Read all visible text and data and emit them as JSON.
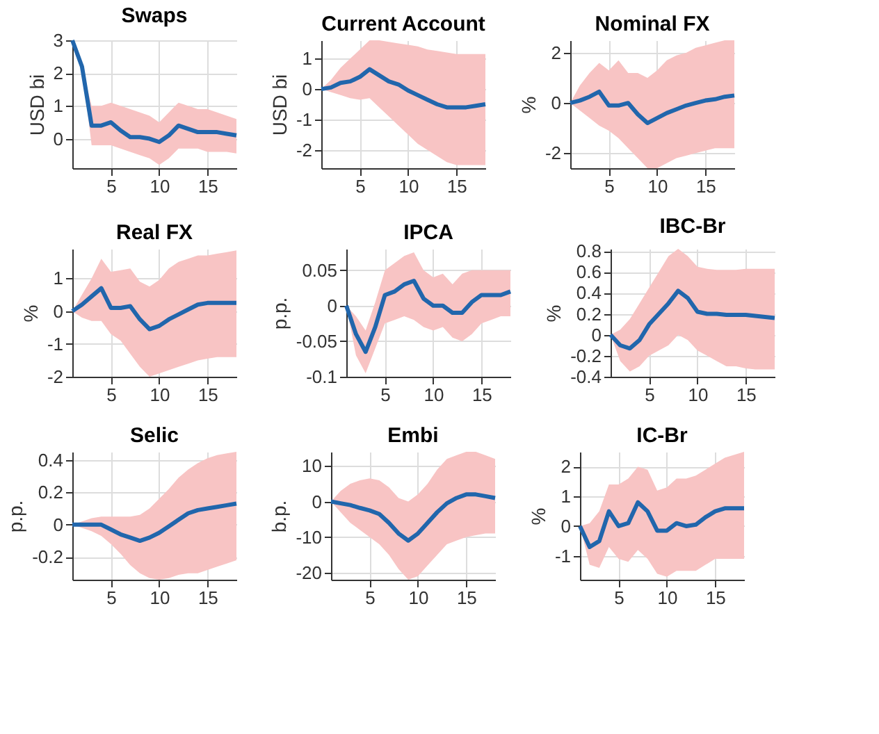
{
  "chart_data": [
    {
      "type": "line",
      "title": "Swaps",
      "ylabel": "USD bi",
      "x": [
        1,
        2,
        3,
        4,
        5,
        6,
        7,
        8,
        9,
        10,
        11,
        12,
        13,
        14,
        15,
        16,
        17,
        18
      ],
      "xlim": [
        1,
        18
      ],
      "xticks": [
        5,
        10,
        15
      ],
      "ylim": [
        -0.9,
        3
      ],
      "yticks": [
        0,
        1,
        2,
        3
      ],
      "grid": true,
      "legend": false,
      "series": [
        {
          "color": "#2166ac",
          "values": [
            3,
            2.2,
            0.4,
            0.4,
            0.5,
            0.25,
            0.05,
            0.05,
            0,
            -0.1,
            0.1,
            0.4,
            0.3,
            0.2,
            0.2,
            0.2,
            0.15,
            0.1
          ],
          "lower": [
            3,
            2.2,
            -0.2,
            -0.2,
            -0.2,
            -0.3,
            -0.4,
            -0.5,
            -0.6,
            -0.8,
            -0.6,
            -0.3,
            -0.3,
            -0.3,
            -0.4,
            -0.4,
            -0.4,
            -0.45
          ],
          "upper": [
            3,
            2.2,
            1.0,
            1.0,
            1.1,
            1.0,
            0.9,
            0.8,
            0.7,
            0.5,
            0.8,
            1.1,
            1.0,
            0.9,
            0.9,
            0.8,
            0.7,
            0.6
          ]
        }
      ]
    },
    {
      "type": "line",
      "title": "Current Account",
      "ylabel": "USD bi",
      "x": [
        1,
        2,
        3,
        4,
        5,
        6,
        7,
        8,
        9,
        10,
        11,
        12,
        13,
        14,
        15,
        16,
        17,
        18
      ],
      "xlim": [
        1,
        18
      ],
      "xticks": [
        5,
        10,
        15
      ],
      "ylim": [
        -2.6,
        1.6
      ],
      "yticks": [
        -2,
        -1,
        0,
        1
      ],
      "grid": true,
      "legend": false,
      "series": [
        {
          "color": "#2166ac",
          "values": [
            0,
            0.05,
            0.2,
            0.25,
            0.4,
            0.65,
            0.45,
            0.25,
            0.15,
            -0.05,
            -0.2,
            -0.35,
            -0.5,
            -0.6,
            -0.6,
            -0.6,
            -0.55,
            -0.5
          ],
          "lower": [
            0,
            -0.1,
            -0.2,
            -0.3,
            -0.35,
            -0.3,
            -0.6,
            -0.9,
            -1.2,
            -1.5,
            -1.8,
            -2.0,
            -2.2,
            -2.4,
            -2.5,
            -2.5,
            -2.5,
            -2.5
          ],
          "upper": [
            0,
            0.3,
            0.7,
            1.0,
            1.3,
            1.6,
            1.6,
            1.55,
            1.5,
            1.45,
            1.4,
            1.3,
            1.25,
            1.2,
            1.15,
            1.15,
            1.15,
            1.15
          ]
        }
      ]
    },
    {
      "type": "line",
      "title": "Nominal FX",
      "ylabel": "%",
      "x": [
        1,
        2,
        3,
        4,
        5,
        6,
        7,
        8,
        9,
        10,
        11,
        12,
        13,
        14,
        15,
        16,
        17,
        18
      ],
      "xlim": [
        1,
        18
      ],
      "xticks": [
        5,
        10,
        15
      ],
      "ylim": [
        -2.6,
        2.5
      ],
      "yticks": [
        -2,
        0,
        2
      ],
      "grid": true,
      "legend": false,
      "series": [
        {
          "color": "#2166ac",
          "values": [
            0,
            0.1,
            0.25,
            0.45,
            -0.1,
            -0.1,
            0,
            -0.45,
            -0.8,
            -0.6,
            -0.4,
            -0.25,
            -0.1,
            0,
            0.1,
            0.15,
            0.25,
            0.3
          ],
          "lower": [
            0,
            -0.3,
            -0.6,
            -0.9,
            -1.1,
            -1.4,
            -1.8,
            -2.2,
            -2.6,
            -2.6,
            -2.4,
            -2.2,
            -2.1,
            -2.0,
            -1.9,
            -1.8,
            -1.8,
            -1.8
          ],
          "upper": [
            0,
            0.7,
            1.2,
            1.6,
            1.3,
            1.7,
            1.2,
            1.2,
            1.0,
            1.3,
            1.7,
            1.9,
            2.0,
            2.2,
            2.3,
            2.4,
            2.5,
            2.5
          ]
        }
      ]
    },
    {
      "type": "line",
      "title": "Real FX",
      "ylabel": "%",
      "x": [
        1,
        2,
        3,
        4,
        5,
        6,
        7,
        8,
        9,
        10,
        11,
        12,
        13,
        14,
        15,
        16,
        17,
        18
      ],
      "xlim": [
        1,
        18
      ],
      "xticks": [
        5,
        10,
        15
      ],
      "ylim": [
        -2,
        1.9
      ],
      "yticks": [
        -2,
        -1,
        0,
        1
      ],
      "grid": true,
      "legend": false,
      "series": [
        {
          "color": "#2166ac",
          "values": [
            0,
            0.2,
            0.45,
            0.7,
            0.1,
            0.1,
            0.15,
            -0.25,
            -0.55,
            -0.45,
            -0.25,
            -0.1,
            0.05,
            0.2,
            0.25,
            0.25,
            0.25,
            0.25
          ],
          "lower": [
            0,
            -0.2,
            -0.3,
            -0.3,
            -0.7,
            -0.9,
            -1.3,
            -1.7,
            -2,
            -1.9,
            -1.8,
            -1.7,
            -1.6,
            -1.5,
            -1.45,
            -1.4,
            -1.4,
            -1.4
          ],
          "upper": [
            0,
            0.5,
            1.0,
            1.6,
            1.2,
            1.25,
            1.3,
            0.9,
            0.75,
            0.95,
            1.3,
            1.5,
            1.6,
            1.7,
            1.7,
            1.75,
            1.8,
            1.85
          ]
        }
      ]
    },
    {
      "type": "line",
      "title": "IPCA",
      "ylabel": "p.p.",
      "x": [
        1,
        2,
        3,
        4,
        5,
        6,
        7,
        8,
        9,
        10,
        11,
        12,
        13,
        14,
        15,
        16,
        17,
        18
      ],
      "xlim": [
        1,
        18
      ],
      "xticks": [
        5,
        10,
        15
      ],
      "ylim": [
        -0.1,
        0.08
      ],
      "yticks": [
        -0.1,
        -0.05,
        0,
        0.05
      ],
      "grid": true,
      "legend": false,
      "series": [
        {
          "color": "#2166ac",
          "values": [
            0,
            -0.04,
            -0.065,
            -0.03,
            0.015,
            0.02,
            0.03,
            0.035,
            0.01,
            0.0,
            0.0,
            -0.01,
            -0.01,
            0.005,
            0.015,
            0.015,
            0.015,
            0.02
          ],
          "lower": [
            0,
            -0.07,
            -0.095,
            -0.06,
            -0.025,
            -0.02,
            -0.015,
            -0.02,
            -0.03,
            -0.035,
            -0.03,
            -0.045,
            -0.05,
            -0.04,
            -0.025,
            -0.02,
            -0.015,
            -0.015
          ],
          "upper": [
            0,
            -0.015,
            -0.035,
            0.005,
            0.05,
            0.06,
            0.07,
            0.075,
            0.05,
            0.04,
            0.045,
            0.03,
            0.045,
            0.05,
            0.05,
            0.05,
            0.05,
            0.05
          ]
        }
      ]
    },
    {
      "type": "line",
      "title": "IBC-Br",
      "ylabel": "%",
      "x": [
        1,
        2,
        3,
        4,
        5,
        6,
        7,
        8,
        9,
        10,
        11,
        12,
        13,
        14,
        15,
        16,
        17,
        18
      ],
      "xlim": [
        1,
        18
      ],
      "xticks": [
        5,
        10,
        15
      ],
      "ylim": [
        -0.4,
        0.82
      ],
      "yticks": [
        -0.4,
        -0.2,
        0,
        0.2,
        0.4,
        0.6,
        0.8
      ],
      "grid": true,
      "legend": false,
      "series": [
        {
          "color": "#2166ac",
          "values": [
            0,
            -0.1,
            -0.13,
            -0.05,
            0.1,
            0.2,
            0.3,
            0.42,
            0.35,
            0.22,
            0.2,
            0.2,
            0.19,
            0.19,
            0.19,
            0.18,
            0.17,
            0.16
          ],
          "lower": [
            0,
            -0.25,
            -0.35,
            -0.3,
            -0.2,
            -0.15,
            -0.1,
            0.0,
            -0.05,
            -0.15,
            -0.2,
            -0.25,
            -0.3,
            -0.3,
            -0.32,
            -0.33,
            -0.33,
            -0.33
          ],
          "upper": [
            0,
            0.05,
            0.15,
            0.3,
            0.45,
            0.6,
            0.75,
            0.82,
            0.75,
            0.65,
            0.63,
            0.62,
            0.62,
            0.62,
            0.63,
            0.63,
            0.63,
            0.63
          ]
        }
      ]
    },
    {
      "type": "line",
      "title": "Selic",
      "ylabel": "p.p.",
      "x": [
        1,
        2,
        3,
        4,
        5,
        6,
        7,
        8,
        9,
        10,
        11,
        12,
        13,
        14,
        15,
        16,
        17,
        18
      ],
      "xlim": [
        1,
        18
      ],
      "xticks": [
        5,
        10,
        15
      ],
      "ylim": [
        -0.34,
        0.45
      ],
      "yticks": [
        -0.2,
        0,
        0.2,
        0.4
      ],
      "grid": true,
      "legend": false,
      "series": [
        {
          "color": "#2166ac",
          "values": [
            0,
            0,
            0,
            0,
            -0.03,
            -0.06,
            -0.08,
            -0.1,
            -0.08,
            -0.05,
            -0.01,
            0.03,
            0.07,
            0.09,
            0.1,
            0.11,
            0.12,
            0.13
          ],
          "lower": [
            0,
            -0.02,
            -0.04,
            -0.07,
            -0.12,
            -0.18,
            -0.25,
            -0.3,
            -0.33,
            -0.34,
            -0.33,
            -0.31,
            -0.3,
            -0.3,
            -0.28,
            -0.26,
            -0.24,
            -0.22
          ],
          "upper": [
            0,
            0.02,
            0.04,
            0.05,
            0.05,
            0.05,
            0.05,
            0.06,
            0.1,
            0.16,
            0.22,
            0.29,
            0.34,
            0.38,
            0.41,
            0.43,
            0.44,
            0.45
          ]
        }
      ]
    },
    {
      "type": "line",
      "title": "Embi",
      "ylabel": "b.p.",
      "x": [
        1,
        2,
        3,
        4,
        5,
        6,
        7,
        8,
        9,
        10,
        11,
        12,
        13,
        14,
        15,
        16,
        17,
        18
      ],
      "xlim": [
        1,
        18
      ],
      "xticks": [
        5,
        10,
        15
      ],
      "ylim": [
        -22,
        14
      ],
      "yticks": [
        -20,
        -10,
        0,
        10
      ],
      "grid": true,
      "legend": false,
      "series": [
        {
          "color": "#2166ac",
          "values": [
            0,
            -0.5,
            -1,
            -1.8,
            -2.5,
            -3.5,
            -6,
            -9,
            -11,
            -9,
            -6,
            -3,
            -0.5,
            1,
            2,
            2,
            1.5,
            1
          ],
          "lower": [
            0,
            -3,
            -6,
            -8,
            -10,
            -12,
            -15,
            -19,
            -22,
            -21,
            -18,
            -15,
            -12,
            -11,
            -10,
            -9.5,
            -9,
            -9
          ],
          "upper": [
            0,
            3,
            5,
            6,
            6.5,
            6,
            4,
            1,
            0,
            2,
            5,
            9,
            12,
            13,
            14,
            14,
            13,
            12
          ]
        }
      ]
    },
    {
      "type": "line",
      "title": "IC-Br",
      "ylabel": "%",
      "x": [
        1,
        2,
        3,
        4,
        5,
        6,
        7,
        8,
        9,
        10,
        11,
        12,
        13,
        14,
        15,
        16,
        17,
        18
      ],
      "xlim": [
        1,
        18
      ],
      "xticks": [
        5,
        10,
        15
      ],
      "ylim": [
        -1.8,
        2.5
      ],
      "yticks": [
        -1,
        0,
        1,
        2
      ],
      "grid": true,
      "legend": false,
      "series": [
        {
          "color": "#2166ac",
          "values": [
            0,
            -0.7,
            -0.5,
            0.5,
            0,
            0.1,
            0.8,
            0.5,
            -0.15,
            -0.15,
            0.1,
            0,
            0.05,
            0.3,
            0.5,
            0.6,
            0.6,
            0.6
          ],
          "lower": [
            0,
            -1.3,
            -1.4,
            -0.7,
            -1.1,
            -1.2,
            -0.8,
            -1.1,
            -1.6,
            -1.7,
            -1.5,
            -1.5,
            -1.5,
            -1.3,
            -1.1,
            -1.1,
            -1.1,
            -1.1
          ],
          "upper": [
            0,
            0.1,
            0.5,
            1.4,
            1.4,
            1.6,
            2.0,
            1.9,
            1.2,
            1.3,
            1.6,
            1.6,
            1.7,
            1.9,
            2.1,
            2.3,
            2.4,
            2.5
          ]
        }
      ]
    }
  ]
}
